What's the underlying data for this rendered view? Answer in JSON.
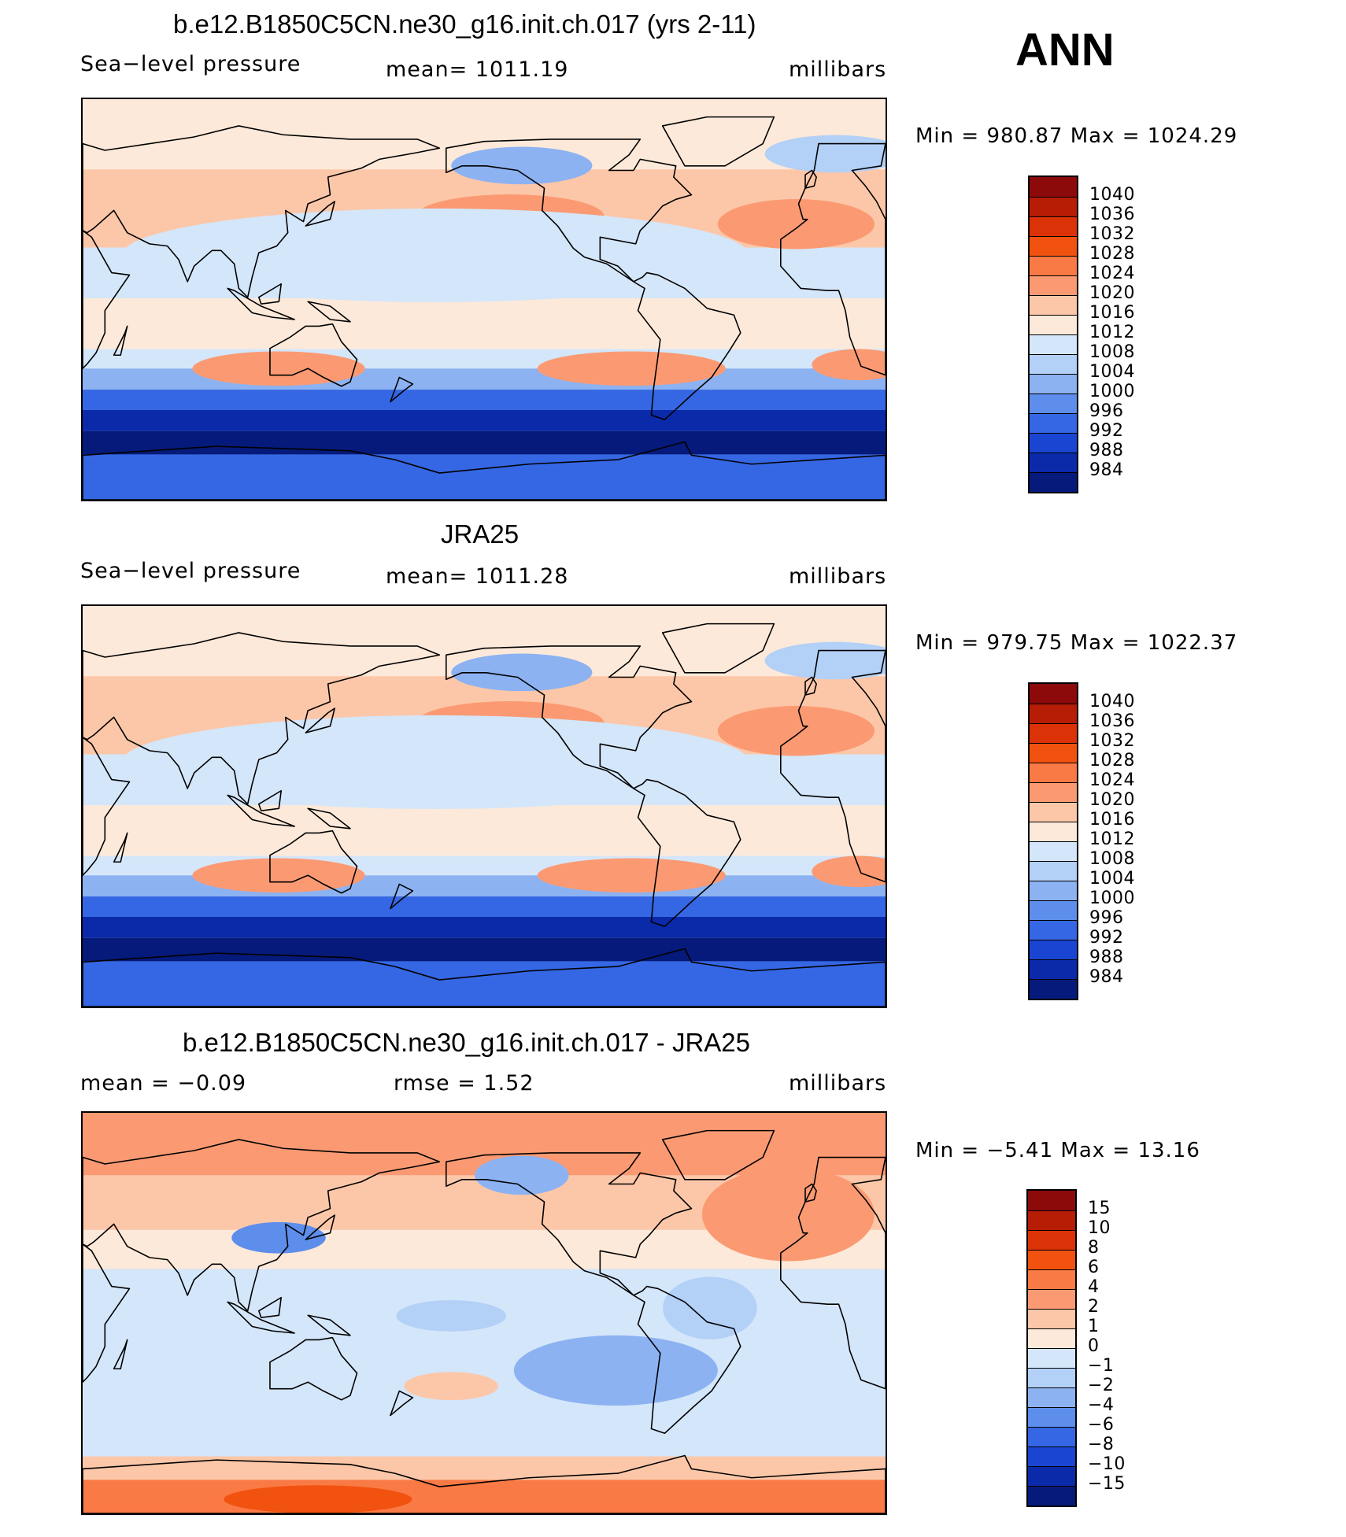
{
  "season": "ANN",
  "panels": [
    {
      "id": "model",
      "title": "b.e12.B1850C5CN.ne30_g16.init.ch.017 (yrs 2-11)",
      "left_text": "Sea−level pressure",
      "center_text": "mean=  1011.19",
      "units": "millibars",
      "minmax": "Min  =  980.87  Max  =  1024.29",
      "variant": "abs",
      "cbar_labels": [
        "1040",
        "1036",
        "1032",
        "1028",
        "1024",
        "1020",
        "1016",
        "1012",
        "1008",
        "1004",
        "1000",
        "996",
        "992",
        "988",
        "984"
      ]
    },
    {
      "id": "obs",
      "title": "JRA25",
      "left_text": "Sea−level pressure",
      "center_text": "mean=  1011.28",
      "units": "millibars",
      "minmax": "Min  =  979.75  Max  =  1022.37",
      "variant": "abs",
      "cbar_labels": [
        "1040",
        "1036",
        "1032",
        "1028",
        "1024",
        "1020",
        "1016",
        "1012",
        "1008",
        "1004",
        "1000",
        "996",
        "992",
        "988",
        "984"
      ]
    },
    {
      "id": "diff",
      "title": "b.e12.B1850C5CN.ne30_g16.init.ch.017 - JRA25",
      "left_text": "mean  =    −0.09",
      "center_text": "rmse  =     1.52",
      "units": "millibars",
      "minmax": "Min  =    −5.41  Max  =    13.16",
      "variant": "diff",
      "cbar_labels": [
        "15",
        "10",
        "8",
        "6",
        "4",
        "2",
        "1",
        "0",
        "−1",
        "−2",
        "−4",
        "−6",
        "−8",
        "−10",
        "−15"
      ]
    }
  ],
  "colors": {
    "palette": [
      "#8c0a0a",
      "#b71c05",
      "#dc3207",
      "#f2520f",
      "#fa7a45",
      "#fb9a72",
      "#fcc7a8",
      "#fde9d9",
      "#d4e6fa",
      "#b3d0f7",
      "#8cb2f2",
      "#5e8eec",
      "#3567e4",
      "#1a45d2",
      "#0a2aaa",
      "#051a7a"
    ],
    "abs_bg": "#d4e6fa",
    "diff_bg": "#d4e6fa"
  }
}
